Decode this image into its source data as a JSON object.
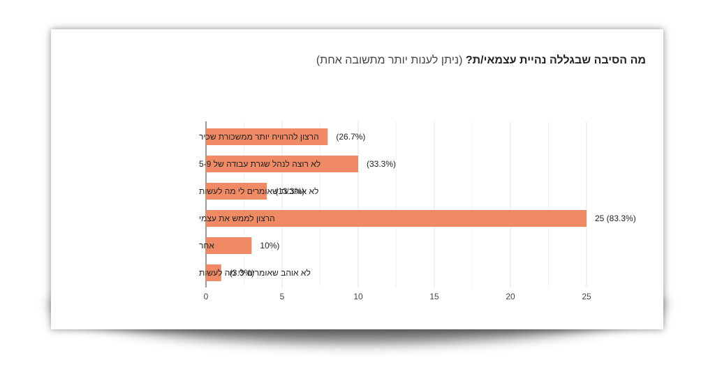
{
  "chart_data": {
    "type": "bar",
    "orientation": "horizontal",
    "title": "מה הסיבה שבגללה נהיית עצמאי/ת?",
    "subtitle": "(ניתן לענות יותר מתשובה אחת)",
    "categories": [
      "הרצון להרוויח יותר ממשכורת שכיר",
      "לא רוצה לנהל שגרת עבודה של 5-9",
      "לא אוהב/ת שאומרים לי מה לעשות",
      "הרצון לממש את עצמי",
      "אחר",
      "לא אוהב שאומרים לי מה לעשות"
    ],
    "values": [
      8,
      10,
      4,
      25,
      3,
      1
    ],
    "data_labels": [
      "(26.7%)",
      "(33.3%)",
      "(13.3%)",
      "25 (83.3%)",
      "10%)",
      "(3.3%)"
    ],
    "xlim": [
      0,
      25
    ],
    "xticks": [
      "0",
      "5",
      "10",
      "15",
      "20",
      "25"
    ],
    "grid": true,
    "bar_color": "#f08a65"
  }
}
